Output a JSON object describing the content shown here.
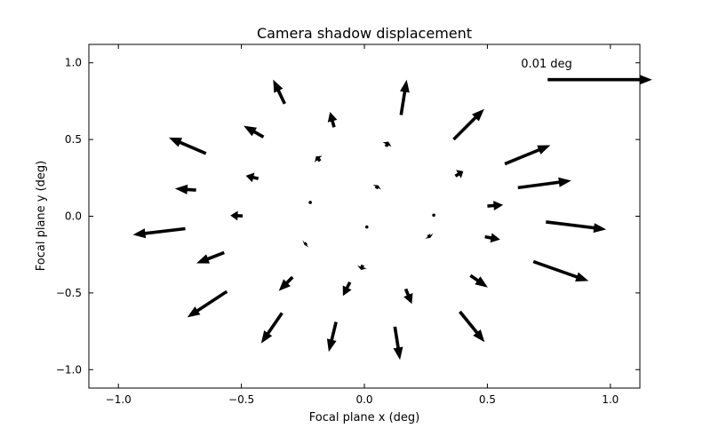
{
  "chart_data": {
    "type": "quiver",
    "title": "Camera shadow displacement",
    "xlabel": "Focal plane x (deg)",
    "ylabel": "Focal plane y (deg)",
    "xlim": [
      -1.12,
      1.12
    ],
    "ylim": [
      -1.12,
      1.12
    ],
    "grid": false,
    "xticks": [
      -1.0,
      -0.5,
      0.0,
      0.5,
      1.0
    ],
    "yticks": [
      -1.0,
      -0.5,
      0.0,
      0.5,
      1.0
    ],
    "xtick_labels": [
      "−1.0",
      "−0.5",
      "0.0",
      "0.5",
      "1.0"
    ],
    "ytick_labels": [
      "−1.0",
      "−0.5",
      "0.0",
      "0.5",
      "1.0"
    ],
    "arrow_color": "#000000",
    "key": {
      "label": "0.01 deg",
      "x": 0.745,
      "y": 0.89,
      "dx": 0.425,
      "dy": 0.0
    },
    "arrows": [
      {
        "x": 0.149,
        "y": 0.66,
        "dx": 0.023,
        "dy": 0.23
      },
      {
        "x": 0.363,
        "y": 0.501,
        "dx": 0.124,
        "dy": 0.198
      },
      {
        "x": 0.571,
        "y": 0.341,
        "dx": 0.185,
        "dy": 0.122
      },
      {
        "x": 0.624,
        "y": 0.186,
        "dx": 0.217,
        "dy": 0.046
      },
      {
        "x": 0.738,
        "y": -0.037,
        "dx": 0.245,
        "dy": -0.049
      },
      {
        "x": 0.687,
        "y": -0.296,
        "dx": 0.224,
        "dy": -0.126
      },
      {
        "x": 0.388,
        "y": -0.622,
        "dx": 0.101,
        "dy": -0.199
      },
      {
        "x": 0.124,
        "y": -0.72,
        "dx": 0.021,
        "dy": -0.216
      },
      {
        "x": -0.115,
        "y": -0.689,
        "dx": -0.03,
        "dy": -0.195
      },
      {
        "x": -0.335,
        "y": -0.631,
        "dx": -0.085,
        "dy": -0.198
      },
      {
        "x": -0.559,
        "y": -0.49,
        "dx": -0.161,
        "dy": -0.169
      },
      {
        "x": -0.57,
        "y": -0.237,
        "dx": -0.113,
        "dy": -0.07
      },
      {
        "x": -0.728,
        "y": -0.081,
        "dx": -0.213,
        "dy": -0.04
      },
      {
        "x": -0.684,
        "y": 0.17,
        "dx": -0.086,
        "dy": 0.01
      },
      {
        "x": -0.644,
        "y": 0.409,
        "dx": -0.151,
        "dy": 0.104
      },
      {
        "x": -0.41,
        "y": 0.516,
        "dx": -0.081,
        "dy": 0.074
      },
      {
        "x": -0.324,
        "y": 0.733,
        "dx": -0.047,
        "dy": 0.158
      },
      {
        "x": -0.123,
        "y": 0.58,
        "dx": -0.017,
        "dy": 0.1
      },
      {
        "x": 0.37,
        "y": 0.262,
        "dx": 0.032,
        "dy": 0.031
      },
      {
        "x": 0.5,
        "y": 0.066,
        "dx": 0.064,
        "dy": 0.008
      },
      {
        "x": 0.49,
        "y": -0.134,
        "dx": 0.062,
        "dy": -0.018
      },
      {
        "x": 0.431,
        "y": -0.386,
        "dx": 0.071,
        "dy": -0.078
      },
      {
        "x": 0.168,
        "y": -0.474,
        "dx": 0.025,
        "dy": -0.097
      },
      {
        "x": -0.059,
        "y": -0.43,
        "dx": -0.028,
        "dy": -0.089
      },
      {
        "x": -0.292,
        "y": -0.397,
        "dx": -0.056,
        "dy": -0.09
      },
      {
        "x": -0.495,
        "y": 0.002,
        "dx": -0.05,
        "dy": 0.003
      },
      {
        "x": -0.431,
        "y": 0.245,
        "dx": -0.051,
        "dy": 0.019
      },
      {
        "x": -0.18,
        "y": 0.36,
        "dx": -0.017,
        "dy": 0.03
      },
      {
        "x": 0.088,
        "y": 0.454,
        "dx": 0.01,
        "dy": 0.032
      },
      {
        "x": 0.048,
        "y": 0.18,
        "dx": 0.008,
        "dy": 0.022
      },
      {
        "x": 0.26,
        "y": -0.121,
        "dx": 0.008,
        "dy": -0.02
      },
      {
        "x": -0.235,
        "y": -0.175,
        "dx": -0.009,
        "dy": -0.012
      },
      {
        "x": -0.007,
        "y": -0.318,
        "dx": -0.006,
        "dy": -0.032
      },
      {
        "x": 0.282,
        "y": 0.007,
        "dx": 0.006,
        "dy": -0.002
      },
      {
        "x": -0.22,
        "y": 0.09,
        "dx": 0.0,
        "dy": 0.0
      },
      {
        "x": 0.01,
        "y": -0.07,
        "dx": 0.0,
        "dy": 0.0
      }
    ]
  }
}
